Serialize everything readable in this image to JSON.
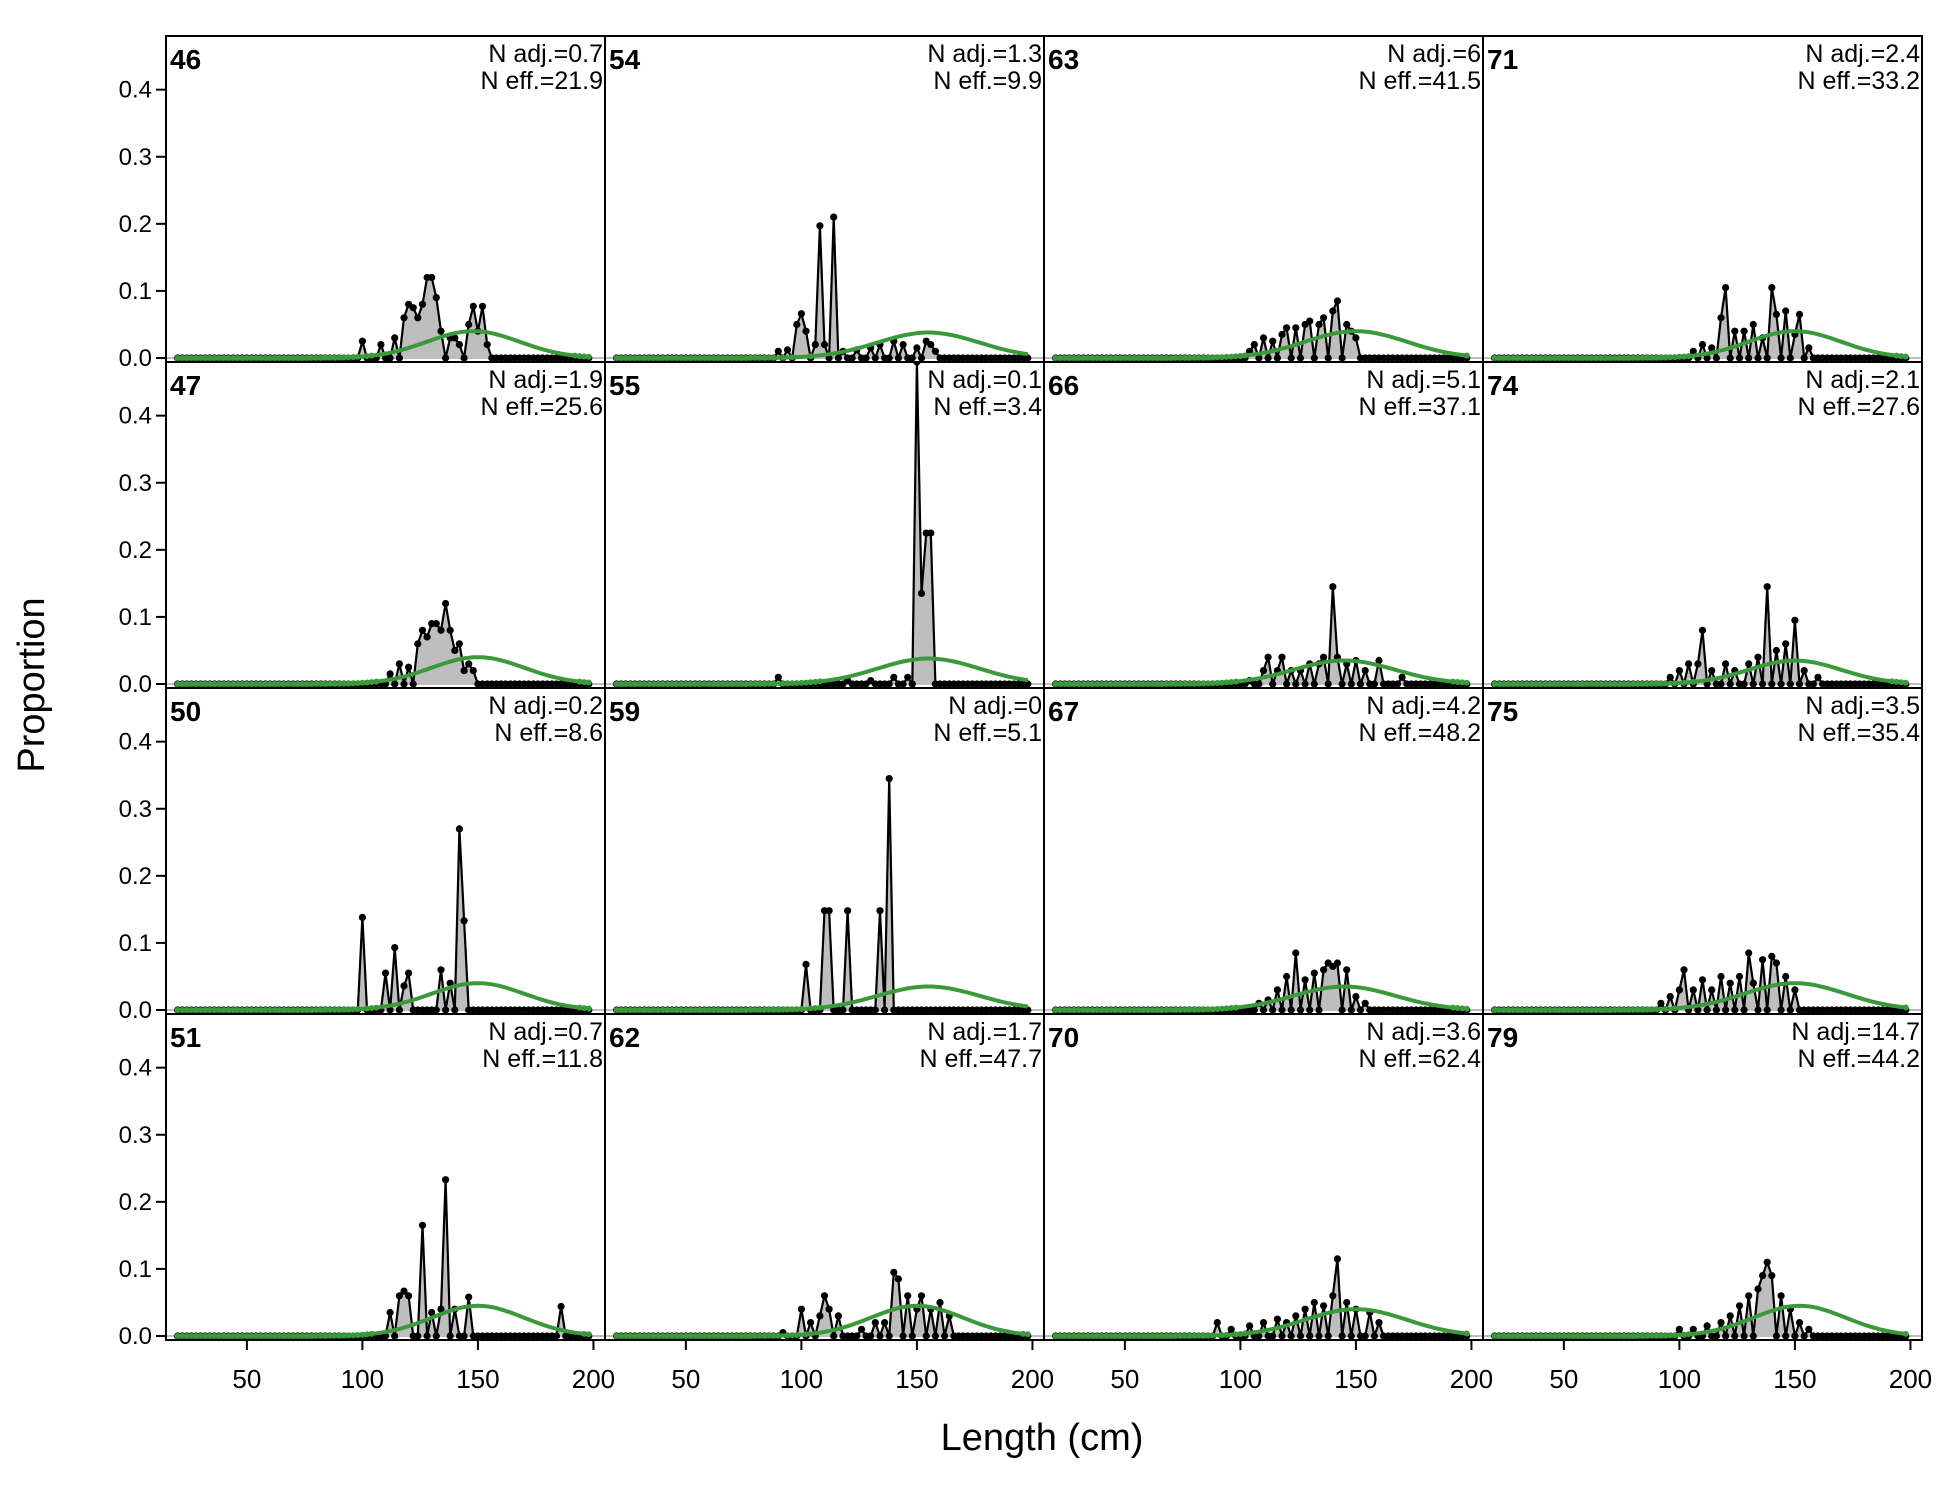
{
  "figure": {
    "xlabel": "Length (cm)",
    "ylabel": "Proportion"
  },
  "chart_data": {
    "type": "line",
    "layout": "4x4 small multiples (panels fill columns top-to-bottom)",
    "xlim": [
      15,
      205
    ],
    "ylim": [
      0,
      0.48
    ],
    "x_ticks": [
      50,
      100,
      150,
      200
    ],
    "y_ticks": [
      0.0,
      0.1,
      0.2,
      0.3,
      0.4
    ],
    "length_bins": {
      "start": 20,
      "end": 198,
      "step": 2
    },
    "colors": {
      "observed_line": "#000000",
      "observed_fill": "#bebebe",
      "expected_line": "#3a9a3a",
      "zero_line": "#bebebe",
      "frame": "#000000"
    },
    "series_legend": [
      "observed (points, line, grey fill)",
      "expected (green line)"
    ],
    "panels": [
      {
        "label": "46",
        "n_adj": "N adj.=0.7",
        "n_eff": "N eff.=21.9",
        "exp_mean": 148,
        "exp_sd": 20,
        "exp_peak": 0.04,
        "obs_peaks": [
          [
            100,
            0.025
          ],
          [
            108,
            0.02
          ],
          [
            114,
            0.03
          ],
          [
            118,
            0.06
          ],
          [
            120,
            0.08
          ],
          [
            122,
            0.075
          ],
          [
            124,
            0.06
          ],
          [
            126,
            0.08
          ],
          [
            128,
            0.12
          ],
          [
            130,
            0.12
          ],
          [
            132,
            0.09
          ],
          [
            134,
            0.04
          ],
          [
            138,
            0.03
          ],
          [
            140,
            0.03
          ],
          [
            142,
            0.02
          ],
          [
            146,
            0.05
          ],
          [
            148,
            0.077
          ],
          [
            150,
            0.04
          ],
          [
            152,
            0.077
          ],
          [
            154,
            0.02
          ]
        ]
      },
      {
        "label": "47",
        "n_adj": "N adj.=1.9",
        "n_eff": "N eff.=25.6",
        "exp_mean": 150,
        "exp_sd": 20,
        "exp_peak": 0.04,
        "obs_peaks": [
          [
            112,
            0.015
          ],
          [
            116,
            0.03
          ],
          [
            120,
            0.025
          ],
          [
            124,
            0.06
          ],
          [
            126,
            0.08
          ],
          [
            128,
            0.07
          ],
          [
            130,
            0.09
          ],
          [
            132,
            0.09
          ],
          [
            134,
            0.08
          ],
          [
            136,
            0.12
          ],
          [
            138,
            0.08
          ],
          [
            140,
            0.05
          ],
          [
            142,
            0.06
          ],
          [
            144,
            0.02
          ],
          [
            146,
            0.03
          ],
          [
            148,
            0.02
          ]
        ]
      },
      {
        "label": "50",
        "n_adj": "N adj.=0.2",
        "n_eff": "N eff.=8.6",
        "exp_mean": 150,
        "exp_sd": 20,
        "exp_peak": 0.04,
        "obs_peaks": [
          [
            100,
            0.138
          ],
          [
            110,
            0.055
          ],
          [
            114,
            0.093
          ],
          [
            118,
            0.036
          ],
          [
            120,
            0.055
          ],
          [
            134,
            0.06
          ],
          [
            138,
            0.04
          ],
          [
            142,
            0.27
          ],
          [
            144,
            0.133
          ]
        ]
      },
      {
        "label": "51",
        "n_adj": "N adj.=0.7",
        "n_eff": "N eff.=11.8",
        "exp_mean": 150,
        "exp_sd": 20,
        "exp_peak": 0.045,
        "obs_peaks": [
          [
            112,
            0.035
          ],
          [
            116,
            0.06
          ],
          [
            118,
            0.067
          ],
          [
            120,
            0.06
          ],
          [
            126,
            0.165
          ],
          [
            130,
            0.035
          ],
          [
            134,
            0.04
          ],
          [
            136,
            0.233
          ],
          [
            140,
            0.04
          ],
          [
            146,
            0.058
          ],
          [
            186,
            0.044
          ]
        ]
      },
      {
        "label": "54",
        "n_adj": "N adj.=1.3",
        "n_eff": "N eff.=9.9",
        "exp_mean": 155,
        "exp_sd": 22,
        "exp_peak": 0.038,
        "obs_peaks": [
          [
            90,
            0.01
          ],
          [
            94,
            0.012
          ],
          [
            98,
            0.05
          ],
          [
            100,
            0.066
          ],
          [
            102,
            0.04
          ],
          [
            106,
            0.02
          ],
          [
            108,
            0.197
          ],
          [
            110,
            0.02
          ],
          [
            114,
            0.21
          ],
          [
            118,
            0.01
          ],
          [
            124,
            0.012
          ],
          [
            130,
            0.015
          ],
          [
            134,
            0.02
          ],
          [
            140,
            0.025
          ],
          [
            144,
            0.02
          ],
          [
            150,
            0.015
          ],
          [
            154,
            0.025
          ],
          [
            156,
            0.02
          ],
          [
            158,
            0.01
          ]
        ]
      },
      {
        "label": "55",
        "n_adj": "N adj.=0.1",
        "n_eff": "N eff.=3.4",
        "exp_mean": 155,
        "exp_sd": 22,
        "exp_peak": 0.038,
        "obs_peaks": [
          [
            90,
            0.01
          ],
          [
            120,
            0.005
          ],
          [
            130,
            0.005
          ],
          [
            140,
            0.01
          ],
          [
            146,
            0.01
          ],
          [
            150,
            0.48
          ],
          [
            152,
            0.135
          ],
          [
            154,
            0.225
          ],
          [
            156,
            0.225
          ]
        ]
      },
      {
        "label": "59",
        "n_adj": "N adj.=0",
        "n_eff": "N eff.=5.1",
        "exp_mean": 155,
        "exp_sd": 22,
        "exp_peak": 0.035,
        "obs_peaks": [
          [
            102,
            0.068
          ],
          [
            110,
            0.148
          ],
          [
            112,
            0.148
          ],
          [
            120,
            0.148
          ],
          [
            134,
            0.148
          ],
          [
            138,
            0.345
          ]
        ]
      },
      {
        "label": "62",
        "n_adj": "N adj.=1.7",
        "n_eff": "N eff.=47.7",
        "exp_mean": 150,
        "exp_sd": 20,
        "exp_peak": 0.045,
        "obs_peaks": [
          [
            92,
            0.005
          ],
          [
            100,
            0.04
          ],
          [
            104,
            0.02
          ],
          [
            108,
            0.03
          ],
          [
            110,
            0.06
          ],
          [
            112,
            0.04
          ],
          [
            116,
            0.03
          ],
          [
            126,
            0.01
          ],
          [
            132,
            0.02
          ],
          [
            136,
            0.02
          ],
          [
            140,
            0.095
          ],
          [
            142,
            0.085
          ],
          [
            146,
            0.06
          ],
          [
            150,
            0.04
          ],
          [
            152,
            0.06
          ],
          [
            156,
            0.04
          ],
          [
            160,
            0.05
          ],
          [
            164,
            0.03
          ]
        ]
      },
      {
        "label": "63",
        "n_adj": "N adj.=6",
        "n_eff": "N eff.=41.5",
        "exp_mean": 150,
        "exp_sd": 22,
        "exp_peak": 0.04,
        "obs_peaks": [
          [
            104,
            0.01
          ],
          [
            106,
            0.02
          ],
          [
            110,
            0.03
          ],
          [
            114,
            0.025
          ],
          [
            118,
            0.035
          ],
          [
            120,
            0.045
          ],
          [
            124,
            0.045
          ],
          [
            128,
            0.05
          ],
          [
            130,
            0.055
          ],
          [
            134,
            0.05
          ],
          [
            136,
            0.06
          ],
          [
            140,
            0.07
          ],
          [
            142,
            0.085
          ],
          [
            146,
            0.05
          ],
          [
            148,
            0.04
          ],
          [
            150,
            0.03
          ]
        ]
      },
      {
        "label": "66",
        "n_adj": "N adj.=5.1",
        "n_eff": "N eff.=37.1",
        "exp_mean": 145,
        "exp_sd": 22,
        "exp_peak": 0.035,
        "obs_peaks": [
          [
            104,
            0.005
          ],
          [
            110,
            0.02
          ],
          [
            112,
            0.04
          ],
          [
            116,
            0.02
          ],
          [
            118,
            0.04
          ],
          [
            122,
            0.02
          ],
          [
            126,
            0.02
          ],
          [
            130,
            0.03
          ],
          [
            134,
            0.03
          ],
          [
            136,
            0.04
          ],
          [
            140,
            0.145
          ],
          [
            142,
            0.04
          ],
          [
            146,
            0.03
          ],
          [
            150,
            0.035
          ],
          [
            154,
            0.02
          ],
          [
            160,
            0.035
          ],
          [
            170,
            0.01
          ]
        ]
      },
      {
        "label": "67",
        "n_adj": "N adj.=4.2",
        "n_eff": "N eff.=48.2",
        "exp_mean": 145,
        "exp_sd": 22,
        "exp_peak": 0.035,
        "obs_peaks": [
          [
            108,
            0.01
          ],
          [
            112,
            0.015
          ],
          [
            116,
            0.03
          ],
          [
            120,
            0.05
          ],
          [
            124,
            0.085
          ],
          [
            128,
            0.045
          ],
          [
            132,
            0.055
          ],
          [
            136,
            0.06
          ],
          [
            138,
            0.07
          ],
          [
            140,
            0.065
          ],
          [
            142,
            0.07
          ],
          [
            146,
            0.06
          ],
          [
            150,
            0.02
          ],
          [
            154,
            0.01
          ]
        ]
      },
      {
        "label": "70",
        "n_adj": "N adj.=3.6",
        "n_eff": "N eff.=62.4",
        "exp_mean": 150,
        "exp_sd": 22,
        "exp_peak": 0.04,
        "obs_peaks": [
          [
            90,
            0.02
          ],
          [
            96,
            0.01
          ],
          [
            104,
            0.015
          ],
          [
            110,
            0.02
          ],
          [
            116,
            0.025
          ],
          [
            120,
            0.02
          ],
          [
            124,
            0.03
          ],
          [
            128,
            0.04
          ],
          [
            132,
            0.05
          ],
          [
            136,
            0.045
          ],
          [
            140,
            0.06
          ],
          [
            142,
            0.115
          ],
          [
            146,
            0.05
          ],
          [
            150,
            0.04
          ],
          [
            156,
            0.035
          ],
          [
            160,
            0.02
          ]
        ]
      },
      {
        "label": "71",
        "n_adj": "N adj.=2.4",
        "n_eff": "N eff.=33.2",
        "exp_mean": 150,
        "exp_sd": 20,
        "exp_peak": 0.04,
        "obs_peaks": [
          [
            106,
            0.01
          ],
          [
            110,
            0.02
          ],
          [
            114,
            0.015
          ],
          [
            118,
            0.06
          ],
          [
            120,
            0.105
          ],
          [
            124,
            0.04
          ],
          [
            128,
            0.04
          ],
          [
            132,
            0.05
          ],
          [
            136,
            0.03
          ],
          [
            140,
            0.105
          ],
          [
            142,
            0.065
          ],
          [
            146,
            0.07
          ],
          [
            150,
            0.035
          ],
          [
            152,
            0.065
          ],
          [
            156,
            0.015
          ]
        ]
      },
      {
        "label": "74",
        "n_adj": "N adj.=2.1",
        "n_eff": "N eff.=27.6",
        "exp_mean": 150,
        "exp_sd": 20,
        "exp_peak": 0.035,
        "obs_peaks": [
          [
            96,
            0.01
          ],
          [
            100,
            0.02
          ],
          [
            104,
            0.03
          ],
          [
            108,
            0.03
          ],
          [
            110,
            0.08
          ],
          [
            114,
            0.02
          ],
          [
            120,
            0.03
          ],
          [
            124,
            0.02
          ],
          [
            130,
            0.03
          ],
          [
            134,
            0.04
          ],
          [
            138,
            0.145
          ],
          [
            142,
            0.05
          ],
          [
            146,
            0.06
          ],
          [
            150,
            0.095
          ],
          [
            154,
            0.02
          ],
          [
            160,
            0.01
          ]
        ]
      },
      {
        "label": "75",
        "n_adj": "N adj.=3.5",
        "n_eff": "N eff.=35.4",
        "exp_mean": 150,
        "exp_sd": 22,
        "exp_peak": 0.04,
        "obs_peaks": [
          [
            92,
            0.01
          ],
          [
            96,
            0.02
          ],
          [
            100,
            0.03
          ],
          [
            102,
            0.06
          ],
          [
            106,
            0.03
          ],
          [
            110,
            0.045
          ],
          [
            114,
            0.03
          ],
          [
            118,
            0.05
          ],
          [
            122,
            0.04
          ],
          [
            126,
            0.05
          ],
          [
            130,
            0.085
          ],
          [
            132,
            0.04
          ],
          [
            136,
            0.075
          ],
          [
            140,
            0.08
          ],
          [
            142,
            0.07
          ],
          [
            146,
            0.05
          ],
          [
            150,
            0.03
          ]
        ]
      },
      {
        "label": "79",
        "n_adj": "N adj.=14.7",
        "n_eff": "N eff.=44.2",
        "exp_mean": 152,
        "exp_sd": 20,
        "exp_peak": 0.045,
        "obs_peaks": [
          [
            100,
            0.01
          ],
          [
            106,
            0.01
          ],
          [
            112,
            0.015
          ],
          [
            118,
            0.02
          ],
          [
            122,
            0.03
          ],
          [
            126,
            0.045
          ],
          [
            130,
            0.06
          ],
          [
            134,
            0.07
          ],
          [
            136,
            0.09
          ],
          [
            138,
            0.11
          ],
          [
            140,
            0.09
          ],
          [
            144,
            0.06
          ],
          [
            148,
            0.04
          ],
          [
            152,
            0.02
          ],
          [
            156,
            0.01
          ]
        ]
      }
    ]
  }
}
